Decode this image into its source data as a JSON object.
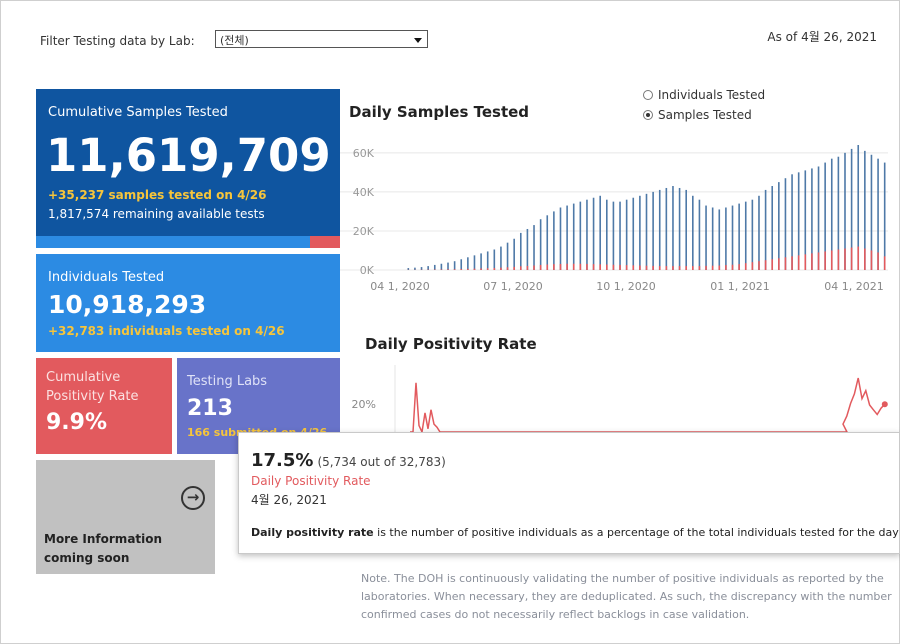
{
  "filter": {
    "label": "Filter Testing data by Lab:",
    "selected": "(전체)"
  },
  "as_of": "As of 4월 26, 2021",
  "cards": {
    "cumulative": {
      "title": "Cumulative Samples Tested",
      "value": "11,619,709",
      "line1": "+35,237 samples tested on 4/26",
      "line2": "1,817,574 remaining available tests",
      "used_fraction": 0.9
    },
    "individuals": {
      "title": "Individuals Tested",
      "value": "10,918,293",
      "line1": "+32,783  individuals  tested on 4/26"
    },
    "positivity": {
      "title_line1": "Cumulative",
      "title_line2": "Positivity Rate",
      "value": "9.9%"
    },
    "labs": {
      "title": "Testing Labs",
      "value": "213",
      "line1": "166 submitted on 4/26"
    },
    "more_info": {
      "line1": "More Information",
      "line2": "coming soon"
    }
  },
  "daily_samples": {
    "title": "Daily Samples Tested",
    "toggle": {
      "option1": "Individuals Tested",
      "option2": "Samples Tested",
      "selected": "Samples Tested"
    }
  },
  "daily_positivity": {
    "title": "Daily Positivity Rate"
  },
  "tooltip": {
    "pct": "17.5%",
    "count": "(5,734 out of  32,783)",
    "label": "Daily Positivity Rate",
    "date": "4월 26, 2021",
    "desc_bold": "Daily positivity rate",
    "desc_rest": " is the number of positive individuals as a percentage of the total individuals tested for the day"
  },
  "note": "Note. The DOH is continuously validating the number of positive individuals as reported by the laboratories. When necessary, they are deduplicated. As such, the discrepancy with the number confirmed cases do not necessarily reflect backlogs in case validation.",
  "colors": {
    "dark_blue": "#0f55a0",
    "blue": "#2c8be3",
    "red": "#e25a5e",
    "purple": "#6873c9",
    "yellow": "#f6c53b",
    "series_blue": "#4e79a7"
  },
  "chart_data": [
    {
      "type": "bar",
      "title": "Daily Samples Tested",
      "x_tick_labels": [
        "04 1, 2020",
        "07 1, 2020",
        "10 1, 2020",
        "01 1, 2021",
        "04 1, 2021"
      ],
      "y_tick_labels": [
        "60K",
        "40K",
        "20K",
        "0K"
      ],
      "ylim": [
        0,
        64000
      ],
      "grid": true,
      "series": [
        {
          "values": [
            1000,
            1200,
            1500,
            2000,
            2600,
            3200,
            3800,
            4500,
            5500,
            6500,
            7500,
            8500,
            9500,
            10500,
            12000,
            14000,
            16000,
            19000,
            21000,
            23000,
            26000,
            28000,
            30000,
            32000,
            33000,
            34000,
            35000,
            36000,
            37000,
            38000,
            36000,
            35000,
            35000,
            36000,
            37000,
            38000,
            39000,
            40000,
            41000,
            42000,
            43000,
            42000,
            41000,
            38000,
            36000,
            33000,
            32000,
            31000,
            32000,
            33000,
            34000,
            35000,
            36000,
            38000,
            41000,
            43000,
            45000,
            47000,
            49000,
            50000,
            51000,
            52000,
            53000,
            55000,
            57000,
            58000,
            60000,
            62000,
            64000,
            61000,
            59000,
            57000,
            55000
          ]
        },
        {
          "values": [
            100,
            120,
            150,
            200,
            260,
            300,
            350,
            400,
            500,
            600,
            700,
            800,
            900,
            1000,
            1200,
            1400,
            1600,
            1900,
            2100,
            2300,
            2600,
            2800,
            3000,
            3100,
            3200,
            3200,
            3200,
            3100,
            3000,
            2900,
            2800,
            2700,
            2600,
            2500,
            2400,
            2300,
            2200,
            2100,
            2000,
            2000,
            2000,
            2000,
            2000,
            2000,
            2000,
            2100,
            2200,
            2300,
            2500,
            2700,
            3000,
            3500,
            4000,
            4500,
            5000,
            5500,
            6000,
            6500,
            7000,
            7500,
            8000,
            8500,
            9000,
            9500,
            10000,
            10500,
            11000,
            11500,
            12000,
            11000,
            10000,
            9000,
            7000
          ]
        }
      ]
    },
    {
      "type": "line",
      "title": "Daily Positivity Rate",
      "y_tick_labels": [
        "20%"
      ],
      "series": [
        {
          "values": [
            0,
            0,
            31,
            4,
            0,
            12,
            2,
            14,
            5,
            3,
            0,
            0,
            0,
            0,
            0,
            0,
            0,
            0,
            0,
            0,
            0,
            0,
            0,
            0,
            0,
            0,
            0,
            0,
            0,
            0,
            0,
            0,
            0,
            0,
            0,
            0,
            0,
            0,
            0,
            0,
            0,
            0,
            0,
            0,
            0,
            0,
            0,
            0,
            0,
            0,
            0,
            0,
            0,
            0,
            0,
            5,
            10,
            18,
            24,
            34,
            21,
            26,
            17,
            14,
            11,
            15,
            17.5
          ]
        }
      ]
    }
  ]
}
